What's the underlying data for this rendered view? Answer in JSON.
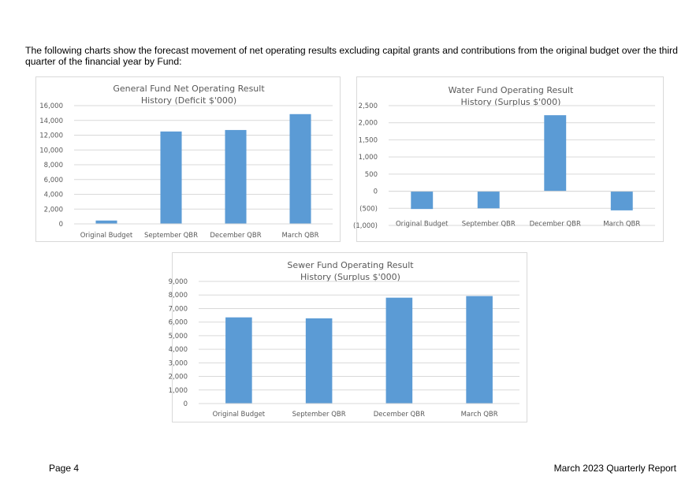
{
  "intro_text": "The following charts show the forecast movement of net operating results excluding capital grants and contributions from the original budget over the third quarter of the financial year by Fund:",
  "footer": {
    "page": "Page 4",
    "report": "March 2023 Quarterly Report"
  },
  "bar_color": "#5b9bd5",
  "chart_data": [
    {
      "type": "bar",
      "title_lines": [
        "General Fund Net Operating Result",
        "History (Deficit $'000)"
      ],
      "categories": [
        "Original Budget",
        "September QBR",
        "December QBR",
        "March QBR"
      ],
      "values": [
        450,
        12500,
        12700,
        14850
      ],
      "ylim": [
        0,
        16000
      ],
      "yticks": [
        0,
        2000,
        4000,
        6000,
        8000,
        10000,
        12000,
        14000,
        16000
      ],
      "ytick_labels": [
        "0",
        "2,000",
        "4,000",
        "6,000",
        "8,000",
        "10,000",
        "12,000",
        "14,000",
        "16,000"
      ],
      "category_labels_at_bottom": true,
      "grid": true
    },
    {
      "type": "bar",
      "title_lines": [
        "Water Fund Operating Result",
        "History (Surplus $'000)"
      ],
      "categories": [
        "Original Budget",
        "September QBR",
        "December QBR",
        "March QBR"
      ],
      "values": [
        -520,
        -500,
        2220,
        -560
      ],
      "ylim": [
        -1000,
        2500
      ],
      "yticks": [
        -1000,
        -500,
        0,
        500,
        1000,
        1500,
        2000,
        2500
      ],
      "ytick_labels": [
        "(1,000)",
        "(500)",
        "0",
        "500",
        "1,000",
        "1,500",
        "2,000",
        "2,500"
      ],
      "category_labels_at_bottom": false,
      "grid": true
    },
    {
      "type": "bar",
      "title_lines": [
        "Sewer Fund Operating Result",
        "History (Surplus $'000)"
      ],
      "categories": [
        "Original Budget",
        "September QBR",
        "December QBR",
        "March QBR"
      ],
      "values": [
        6350,
        6280,
        7800,
        7920
      ],
      "ylim": [
        0,
        9000
      ],
      "yticks": [
        0,
        1000,
        2000,
        3000,
        4000,
        5000,
        6000,
        7000,
        8000,
        9000
      ],
      "ytick_labels": [
        "0",
        "1,000",
        "2,000",
        "3,000",
        "4,000",
        "5,000",
        "6,000",
        "7,000",
        "8,000",
        "9,000"
      ],
      "category_labels_at_bottom": true,
      "grid": true
    }
  ]
}
